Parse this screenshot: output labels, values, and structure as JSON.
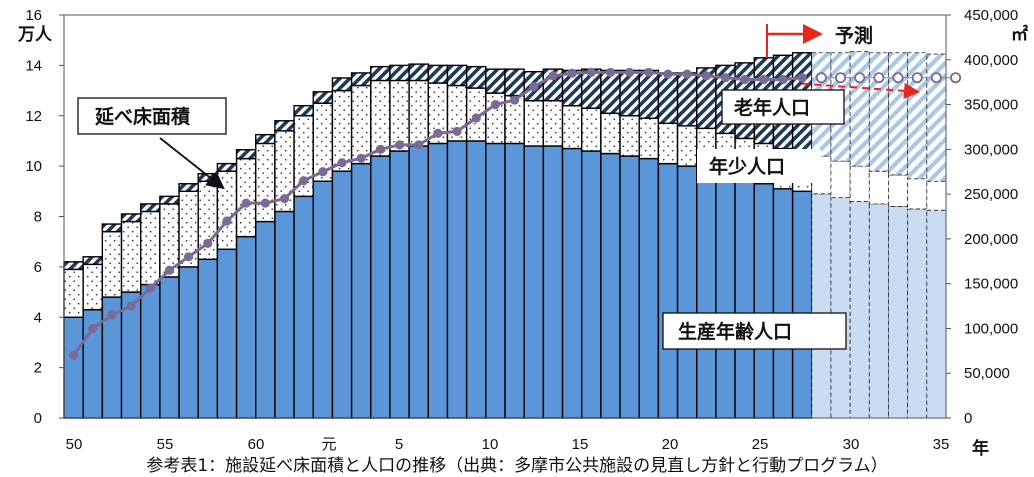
{
  "chart_data": {
    "type": "bar",
    "caption": "参考表1：施設延べ床面積と人口の推移（出典：多摩市公共施設の見直し方針と行動プログラム）",
    "y_left_unit": "万人",
    "y_right_unit": "㎡",
    "x_axis_unit": "年",
    "forecast_label": "予測",
    "y_left_ticks": [
      "0",
      "2",
      "4",
      "6",
      "8",
      "10",
      "12",
      "14",
      "16"
    ],
    "y_right_ticks": [
      "0",
      "50,000",
      "100,000",
      "150,000",
      "200,000",
      "250,000",
      "300,000",
      "350,000",
      "400,000",
      "450,000"
    ],
    "x_tick_labels": [
      "50",
      "55",
      "60",
      "元",
      "5",
      "10",
      "15",
      "20",
      "25",
      "30",
      "35"
    ],
    "ylim_left": [
      0,
      16
    ],
    "ylim_right": [
      0,
      450000
    ],
    "series_labels": {
      "elderly": "老年人口",
      "youth": "年少人口",
      "working": "生産年齢人口",
      "floor_area": "延べ床面積"
    },
    "working_age": [
      4.0,
      4.3,
      4.8,
      5.0,
      5.3,
      5.6,
      6.0,
      6.3,
      6.7,
      7.2,
      7.8,
      8.2,
      8.8,
      9.4,
      9.8,
      10.1,
      10.4,
      10.6,
      10.8,
      10.9,
      11.0,
      11.0,
      10.9,
      10.9,
      10.8,
      10.8,
      10.7,
      10.6,
      10.5,
      10.4,
      10.3,
      10.1,
      10.0,
      9.9,
      9.7,
      9.5,
      9.3,
      9.1,
      9.0,
      8.9,
      8.75,
      8.6,
      8.5,
      8.4,
      8.3,
      8.25
    ],
    "youth": [
      1.9,
      1.8,
      2.6,
      2.8,
      2.9,
      2.9,
      3.0,
      3.1,
      3.1,
      3.1,
      3.1,
      3.2,
      3.2,
      3.1,
      3.2,
      3.1,
      3.0,
      2.8,
      2.6,
      2.4,
      2.2,
      2.1,
      2.0,
      1.9,
      1.8,
      1.8,
      1.7,
      1.7,
      1.6,
      1.6,
      1.6,
      1.6,
      1.6,
      1.6,
      1.6,
      1.6,
      1.6,
      1.6,
      1.55,
      1.5,
      1.45,
      1.4,
      1.3,
      1.25,
      1.2,
      1.15
    ],
    "elderly": [
      0.3,
      0.3,
      0.3,
      0.3,
      0.3,
      0.3,
      0.3,
      0.3,
      0.3,
      0.35,
      0.35,
      0.4,
      0.4,
      0.45,
      0.5,
      0.5,
      0.55,
      0.6,
      0.65,
      0.7,
      0.8,
      0.85,
      0.95,
      1.05,
      1.15,
      1.25,
      1.4,
      1.55,
      1.7,
      1.8,
      1.9,
      2.0,
      2.1,
      2.4,
      2.7,
      3.0,
      3.4,
      3.7,
      3.95,
      4.1,
      4.3,
      4.55,
      4.7,
      4.85,
      5.0,
      5.05
    ],
    "forecast_start_index": 39,
    "floor_area_m2": [
      70000,
      100000,
      115000,
      125000,
      145000,
      165000,
      180000,
      195000,
      220000,
      240000,
      240000,
      245000,
      265000,
      275000,
      285000,
      290000,
      300000,
      305000,
      305000,
      318000,
      320000,
      335000,
      350000,
      355000,
      370000,
      382000,
      385000,
      386000,
      386000,
      386000,
      386000,
      384000,
      384000,
      382000,
      380000,
      378000,
      378000,
      378000,
      380000
    ],
    "floor_area_forecast_m2": [
      380000,
      380000,
      380000,
      380000,
      380000,
      380000,
      380000,
      380000
    ],
    "colors": {
      "working": "#5b96d8",
      "working_forecast": "#c9dcf2",
      "elderly_hatch": "#1f3a56",
      "elderly_forecast_hatch": "#a9c7e6",
      "floor_line": "#7a6b96",
      "forecast_arrow": "#e8271c"
    }
  }
}
